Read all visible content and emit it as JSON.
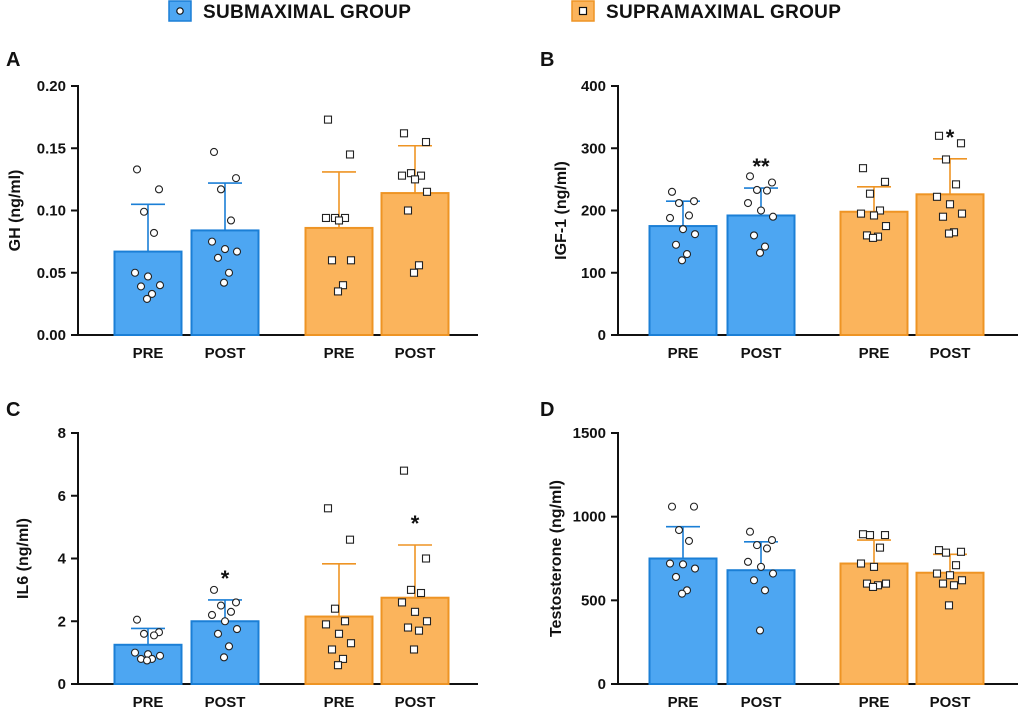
{
  "legend": [
    {
      "name": "SUBMAXIMAL GROUP",
      "color": "#4da6f2",
      "stroke": "#1b7fd6",
      "marker": "circle"
    },
    {
      "name": "SUPRAMAXIMAL GROUP",
      "color": "#fbb45c",
      "stroke": "#ee9424",
      "marker": "square"
    }
  ],
  "chart_data": [
    {
      "panel": "A",
      "type": "bar",
      "ylabel": "GH (ng/ml)",
      "ylim": [
        0,
        0.2
      ],
      "yticks": [
        "0.00",
        "0.05",
        "0.10",
        "0.15",
        "0.20"
      ],
      "ytick_values": [
        0,
        0.05,
        0.1,
        0.15,
        0.2
      ],
      "categories": [
        "PRE",
        "POST",
        "PRE",
        "POST"
      ],
      "groups": [
        "SUBMAXIMAL GROUP",
        "SUBMAXIMAL GROUP",
        "SUPRAMAXIMAL GROUP",
        "SUPRAMAXIMAL GROUP"
      ],
      "values": [
        0.067,
        0.084,
        0.086,
        0.114
      ],
      "sd": [
        0.038,
        0.038,
        0.045,
        0.038
      ],
      "significance": [
        "",
        "",
        "",
        ""
      ],
      "points": [
        [
          0.133,
          0.117,
          0.099,
          0.082,
          0.05,
          0.047,
          0.04,
          0.039,
          0.033,
          0.029
        ],
        [
          0.147,
          0.126,
          0.117,
          0.092,
          0.075,
          0.069,
          0.067,
          0.062,
          0.05,
          0.042
        ],
        [
          0.173,
          0.145,
          0.094,
          0.094,
          0.094,
          0.092,
          0.06,
          0.06,
          0.04,
          0.035
        ],
        [
          0.162,
          0.155,
          0.13,
          0.128,
          0.128,
          0.125,
          0.115,
          0.1,
          0.056,
          0.05
        ]
      ]
    },
    {
      "panel": "B",
      "type": "bar",
      "ylabel": "IGF-1 (ng/ml)",
      "ylim": [
        0,
        400
      ],
      "yticks": [
        "0",
        "100",
        "200",
        "300",
        "400"
      ],
      "ytick_values": [
        0,
        100,
        200,
        300,
        400
      ],
      "categories": [
        "PRE",
        "POST",
        "PRE",
        "POST"
      ],
      "groups": [
        "SUBMAXIMAL GROUP",
        "SUBMAXIMAL GROUP",
        "SUPRAMAXIMAL GROUP",
        "SUPRAMAXIMAL GROUP"
      ],
      "values": [
        175,
        192,
        198,
        226
      ],
      "sd": [
        40,
        44,
        40,
        57
      ],
      "significance": [
        "",
        "**",
        "",
        "*"
      ],
      "points": [
        [
          230,
          215,
          212,
          192,
          188,
          170,
          162,
          145,
          130,
          120
        ],
        [
          255,
          245,
          233,
          232,
          212,
          200,
          190,
          160,
          142,
          132
        ],
        [
          268,
          246,
          227,
          200,
          195,
          192,
          175,
          160,
          158,
          156
        ],
        [
          320,
          308,
          282,
          242,
          222,
          210,
          195,
          190,
          165,
          163
        ]
      ]
    },
    {
      "panel": "C",
      "type": "bar",
      "ylabel": "IL6 (ng/ml)",
      "ylim": [
        0,
        8
      ],
      "yticks": [
        "0",
        "2",
        "4",
        "6",
        "8"
      ],
      "ytick_values": [
        0,
        2,
        4,
        6,
        8
      ],
      "categories": [
        "PRE",
        "POST",
        "PRE",
        "POST"
      ],
      "groups": [
        "SUBMAXIMAL GROUP",
        "SUBMAXIMAL GROUP",
        "SUPRAMAXIMAL GROUP",
        "SUPRAMAXIMAL GROUP"
      ],
      "values": [
        1.25,
        2.0,
        2.15,
        2.75
      ],
      "sd": [
        0.52,
        0.68,
        1.68,
        1.68
      ],
      "significance": [
        "",
        "*",
        "",
        "*"
      ],
      "points": [
        [
          2.05,
          1.65,
          1.6,
          1.55,
          1.0,
          0.95,
          0.9,
          0.8,
          0.8,
          0.75
        ],
        [
          3.0,
          2.6,
          2.5,
          2.3,
          2.2,
          2.0,
          1.75,
          1.6,
          1.2,
          0.85
        ],
        [
          5.6,
          4.6,
          2.4,
          2.0,
          1.9,
          1.6,
          1.3,
          1.1,
          0.8,
          0.6
        ],
        [
          6.8,
          4.0,
          3.0,
          2.9,
          2.6,
          2.3,
          2.0,
          1.8,
          1.7,
          1.1
        ]
      ]
    },
    {
      "panel": "D",
      "type": "bar",
      "ylabel": "Testosterone (ng/ml)",
      "ylim": [
        0,
        1500
      ],
      "yticks": [
        "0",
        "500",
        "1000",
        "1500"
      ],
      "ytick_values": [
        0,
        500,
        1000,
        1500
      ],
      "categories": [
        "PRE",
        "POST",
        "PRE",
        "POST"
      ],
      "groups": [
        "SUBMAXIMAL GROUP",
        "SUBMAXIMAL GROUP",
        "SUPRAMAXIMAL GROUP",
        "SUPRAMAXIMAL GROUP"
      ],
      "values": [
        750,
        680,
        720,
        665
      ],
      "sd": [
        190,
        170,
        140,
        110
      ],
      "significance": [
        "",
        "",
        "",
        ""
      ],
      "points": [
        [
          1060,
          1060,
          920,
          855,
          720,
          715,
          690,
          640,
          560,
          540
        ],
        [
          910,
          860,
          830,
          810,
          730,
          700,
          660,
          620,
          560,
          320
        ],
        [
          895,
          890,
          890,
          815,
          720,
          700,
          600,
          600,
          590,
          580
        ],
        [
          800,
          790,
          785,
          710,
          660,
          650,
          620,
          600,
          590,
          470
        ]
      ]
    }
  ]
}
